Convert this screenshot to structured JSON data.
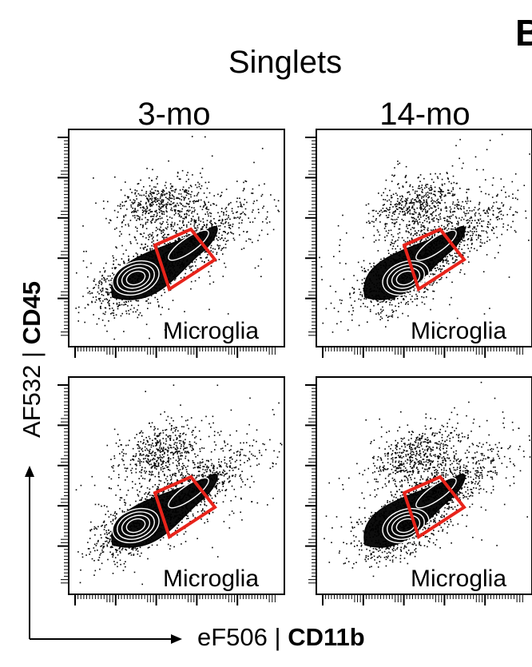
{
  "figure": {
    "panel_letter": "B",
    "group_title": "Singlets",
    "columns": [
      "3-mo",
      "14-mo"
    ],
    "y_axis_label_normal": "AF532 | ",
    "y_axis_label_bold": "CD45",
    "x_axis_label_normal": "eF506 | ",
    "x_axis_label_bold": "CD11b"
  },
  "chart_data": {
    "type": "scatter",
    "subtype": "flow-cytometry contour/density plots",
    "grid": "2 rows x 2 columns",
    "columns": [
      "3-mo",
      "14-mo"
    ],
    "xlabel": "eF506 | CD11b",
    "ylabel": "AF532 | CD45",
    "x_scale": "log",
    "y_scale": "log",
    "gate": {
      "name": "Microglia",
      "color": "#e8231a",
      "shape": "polygon"
    },
    "panels": [
      {
        "row": 1,
        "column": "3-mo",
        "gate_label": "Microglia"
      },
      {
        "row": 1,
        "column": "14-mo",
        "gate_label": "Microglia"
      },
      {
        "row": 2,
        "column": "3-mo",
        "gate_label": "Microglia"
      },
      {
        "row": 2,
        "column": "14-mo",
        "gate_label": "Microglia"
      }
    ]
  },
  "colors": {
    "gate": "#e8231a",
    "ink": "#000000",
    "background": "#ffffff"
  }
}
